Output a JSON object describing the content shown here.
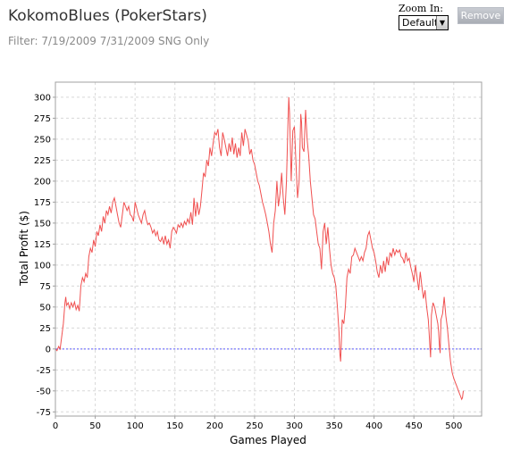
{
  "header": {
    "title": "KokomoBlues (PokerStars)",
    "filter": "Filter: 7/19/2009 7/31/2009 SNG Only"
  },
  "controls": {
    "zoom_label": "Zoom In:",
    "zoom_value": "Default",
    "zoom_arrow": "▼",
    "remove_label": "Remove"
  },
  "colors": {
    "series": "#f05050",
    "zero_line": "#5a5aff",
    "grid": "#d8d8d8",
    "frame": "#a0a0a0"
  },
  "chart_data": {
    "type": "line",
    "title": "",
    "xlabel": "Games Played",
    "ylabel": "Total Profit ($)",
    "xlim": [
      0,
      535
    ],
    "ylim": [
      -80,
      318
    ],
    "x_ticks": [
      0,
      50,
      100,
      150,
      200,
      250,
      300,
      350,
      400,
      450,
      500
    ],
    "y_ticks": [
      -75,
      -50,
      -25,
      0,
      25,
      50,
      75,
      100,
      125,
      150,
      175,
      200,
      225,
      250,
      275,
      300
    ],
    "grid": true,
    "reference_line": {
      "y": 0,
      "style": "dashed"
    },
    "series": [
      {
        "points": [
          [
            0,
            0
          ],
          [
            2,
            -2
          ],
          [
            4,
            3
          ],
          [
            6,
            0
          ],
          [
            8,
            15
          ],
          [
            10,
            30
          ],
          [
            12,
            55
          ],
          [
            13,
            62
          ],
          [
            14,
            52
          ],
          [
            16,
            55
          ],
          [
            18,
            48
          ],
          [
            20,
            55
          ],
          [
            22,
            50
          ],
          [
            24,
            56
          ],
          [
            26,
            47
          ],
          [
            28,
            52
          ],
          [
            30,
            45
          ],
          [
            32,
            75
          ],
          [
            34,
            85
          ],
          [
            36,
            80
          ],
          [
            38,
            90
          ],
          [
            40,
            85
          ],
          [
            42,
            110
          ],
          [
            44,
            120
          ],
          [
            46,
            115
          ],
          [
            48,
            130
          ],
          [
            50,
            122
          ],
          [
            52,
            140
          ],
          [
            54,
            135
          ],
          [
            56,
            148
          ],
          [
            58,
            140
          ],
          [
            60,
            158
          ],
          [
            62,
            150
          ],
          [
            64,
            165
          ],
          [
            66,
            160
          ],
          [
            68,
            170
          ],
          [
            70,
            162
          ],
          [
            72,
            175
          ],
          [
            74,
            180
          ],
          [
            76,
            170
          ],
          [
            78,
            160
          ],
          [
            80,
            150
          ],
          [
            82,
            145
          ],
          [
            84,
            160
          ],
          [
            86,
            175
          ],
          [
            88,
            170
          ],
          [
            90,
            165
          ],
          [
            92,
            170
          ],
          [
            94,
            160
          ],
          [
            96,
            158
          ],
          [
            98,
            152
          ],
          [
            100,
            175
          ],
          [
            102,
            168
          ],
          [
            104,
            160
          ],
          [
            106,
            155
          ],
          [
            108,
            150
          ],
          [
            110,
            160
          ],
          [
            112,
            165
          ],
          [
            114,
            155
          ],
          [
            116,
            148
          ],
          [
            118,
            150
          ],
          [
            120,
            145
          ],
          [
            122,
            138
          ],
          [
            124,
            142
          ],
          [
            126,
            135
          ],
          [
            128,
            140
          ],
          [
            130,
            130
          ],
          [
            132,
            128
          ],
          [
            134,
            133
          ],
          [
            136,
            125
          ],
          [
            138,
            135
          ],
          [
            140,
            125
          ],
          [
            142,
            130
          ],
          [
            144,
            120
          ],
          [
            146,
            140
          ],
          [
            148,
            145
          ],
          [
            150,
            142
          ],
          [
            152,
            138
          ],
          [
            154,
            148
          ],
          [
            156,
            145
          ],
          [
            158,
            150
          ],
          [
            160,
            145
          ],
          [
            162,
            152
          ],
          [
            164,
            148
          ],
          [
            166,
            155
          ],
          [
            168,
            150
          ],
          [
            170,
            163
          ],
          [
            172,
            148
          ],
          [
            174,
            180
          ],
          [
            176,
            158
          ],
          [
            178,
            175
          ],
          [
            180,
            160
          ],
          [
            182,
            170
          ],
          [
            184,
            190
          ],
          [
            186,
            210
          ],
          [
            188,
            205
          ],
          [
            190,
            225
          ],
          [
            192,
            218
          ],
          [
            194,
            240
          ],
          [
            196,
            230
          ],
          [
            198,
            245
          ],
          [
            200,
            258
          ],
          [
            202,
            255
          ],
          [
            204,
            262
          ],
          [
            206,
            240
          ],
          [
            208,
            230
          ],
          [
            210,
            258
          ],
          [
            212,
            250
          ],
          [
            214,
            240
          ],
          [
            216,
            230
          ],
          [
            218,
            245
          ],
          [
            220,
            235
          ],
          [
            222,
            252
          ],
          [
            224,
            232
          ],
          [
            226,
            245
          ],
          [
            228,
            228
          ],
          [
            230,
            240
          ],
          [
            232,
            230
          ],
          [
            234,
            258
          ],
          [
            236,
            242
          ],
          [
            238,
            262
          ],
          [
            240,
            255
          ],
          [
            242,
            248
          ],
          [
            244,
            232
          ],
          [
            246,
            238
          ],
          [
            248,
            225
          ],
          [
            250,
            220
          ],
          [
            252,
            210
          ],
          [
            254,
            200
          ],
          [
            256,
            195
          ],
          [
            258,
            185
          ],
          [
            260,
            175
          ],
          [
            262,
            168
          ],
          [
            264,
            160
          ],
          [
            266,
            150
          ],
          [
            268,
            140
          ],
          [
            270,
            125
          ],
          [
            272,
            115
          ],
          [
            274,
            150
          ],
          [
            276,
            165
          ],
          [
            278,
            200
          ],
          [
            280,
            170
          ],
          [
            282,
            185
          ],
          [
            284,
            210
          ],
          [
            286,
            180
          ],
          [
            288,
            160
          ],
          [
            290,
            200
          ],
          [
            292,
            270
          ],
          [
            293,
            300
          ],
          [
            294,
            280
          ],
          [
            296,
            200
          ],
          [
            298,
            260
          ],
          [
            300,
            265
          ],
          [
            302,
            220
          ],
          [
            304,
            180
          ],
          [
            306,
            200
          ],
          [
            308,
            280
          ],
          [
            309,
            270
          ],
          [
            310,
            240
          ],
          [
            312,
            235
          ],
          [
            314,
            285
          ],
          [
            316,
            250
          ],
          [
            318,
            230
          ],
          [
            320,
            200
          ],
          [
            322,
            180
          ],
          [
            324,
            160
          ],
          [
            326,
            155
          ],
          [
            328,
            140
          ],
          [
            330,
            125
          ],
          [
            332,
            120
          ],
          [
            334,
            95
          ],
          [
            336,
            140
          ],
          [
            338,
            150
          ],
          [
            340,
            125
          ],
          [
            342,
            145
          ],
          [
            344,
            120
          ],
          [
            346,
            100
          ],
          [
            348,
            90
          ],
          [
            350,
            85
          ],
          [
            352,
            75
          ],
          [
            354,
            50
          ],
          [
            356,
            20
          ],
          [
            357,
            -5
          ],
          [
            358,
            -15
          ],
          [
            360,
            35
          ],
          [
            362,
            30
          ],
          [
            364,
            50
          ],
          [
            366,
            85
          ],
          [
            368,
            95
          ],
          [
            370,
            90
          ],
          [
            372,
            110
          ],
          [
            374,
            112
          ],
          [
            376,
            120
          ],
          [
            378,
            115
          ],
          [
            380,
            110
          ],
          [
            382,
            105
          ],
          [
            384,
            110
          ],
          [
            386,
            105
          ],
          [
            388,
            115
          ],
          [
            390,
            120
          ],
          [
            392,
            135
          ],
          [
            394,
            140
          ],
          [
            396,
            130
          ],
          [
            398,
            120
          ],
          [
            400,
            115
          ],
          [
            402,
            105
          ],
          [
            404,
            92
          ],
          [
            406,
            85
          ],
          [
            408,
            100
          ],
          [
            410,
            90
          ],
          [
            412,
            105
          ],
          [
            414,
            92
          ],
          [
            416,
            110
          ],
          [
            418,
            100
          ],
          [
            420,
            115
          ],
          [
            422,
            110
          ],
          [
            424,
            120
          ],
          [
            426,
            112
          ],
          [
            428,
            118
          ],
          [
            430,
            115
          ],
          [
            432,
            118
          ],
          [
            434,
            110
          ],
          [
            436,
            108
          ],
          [
            438,
            102
          ],
          [
            440,
            115
          ],
          [
            442,
            105
          ],
          [
            444,
            108
          ],
          [
            446,
            98
          ],
          [
            448,
            90
          ],
          [
            450,
            80
          ],
          [
            452,
            100
          ],
          [
            454,
            85
          ],
          [
            456,
            70
          ],
          [
            458,
            92
          ],
          [
            460,
            75
          ],
          [
            462,
            60
          ],
          [
            464,
            70
          ],
          [
            466,
            50
          ],
          [
            468,
            35
          ],
          [
            469,
            20
          ],
          [
            470,
            5
          ],
          [
            471,
            -10
          ],
          [
            472,
            40
          ],
          [
            474,
            55
          ],
          [
            476,
            50
          ],
          [
            478,
            40
          ],
          [
            480,
            30
          ],
          [
            481,
            20
          ],
          [
            482,
            5
          ],
          [
            483,
            -5
          ],
          [
            484,
            35
          ],
          [
            486,
            42
          ],
          [
            488,
            62
          ],
          [
            490,
            40
          ],
          [
            492,
            25
          ],
          [
            494,
            5
          ],
          [
            496,
            -15
          ],
          [
            498,
            -28
          ],
          [
            500,
            -35
          ],
          [
            502,
            -40
          ],
          [
            504,
            -45
          ],
          [
            506,
            -50
          ],
          [
            508,
            -55
          ],
          [
            510,
            -60
          ],
          [
            511,
            -58
          ],
          [
            512,
            -50
          ]
        ]
      }
    ]
  }
}
